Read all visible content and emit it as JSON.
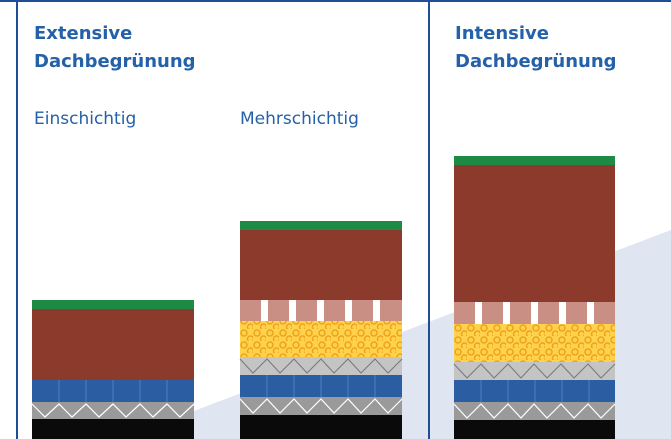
{
  "sections": {
    "extensive": {
      "title_line1": "Extensive",
      "title_line2": "Dachbegrünung",
      "variants": [
        {
          "label": "Einschichtig"
        },
        {
          "label": "Mehrschichtig"
        }
      ]
    },
    "intensive": {
      "title_line1": "Intensive",
      "title_line2": "Dachbegrünung"
    }
  },
  "colors": {
    "border": "#1f4e96",
    "title": "#2461a8",
    "vegetation": "#1e8a44",
    "soil": "#8b3a2b",
    "filter_tiles": "#c98f84",
    "gravel_bg": "#ffd24d",
    "gravel_ring": "#f0a21a",
    "protection": "#b8b8b8",
    "drainage": "#2a5da1",
    "drainage_line": "#4f7fc0",
    "zigzag_bg": "#9a9a9a",
    "roof": "#0a0a0a",
    "background_wedge": "#d9e1ef"
  }
}
